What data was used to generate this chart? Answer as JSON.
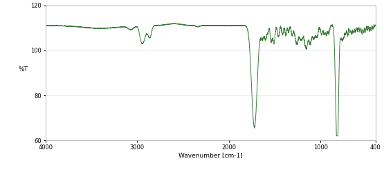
{
  "title": "",
  "xlabel": "Wavenumber [cm-1]",
  "ylabel": "%T",
  "xlim": [
    4000,
    400
  ],
  "ylim": [
    60,
    120
  ],
  "yticks": [
    60,
    80,
    100,
    120
  ],
  "xticks": [
    4000,
    3000,
    2000,
    1000,
    400
  ],
  "line_color": "#3a7a3a",
  "bg_color": "#ffffff",
  "line_width": 0.7
}
